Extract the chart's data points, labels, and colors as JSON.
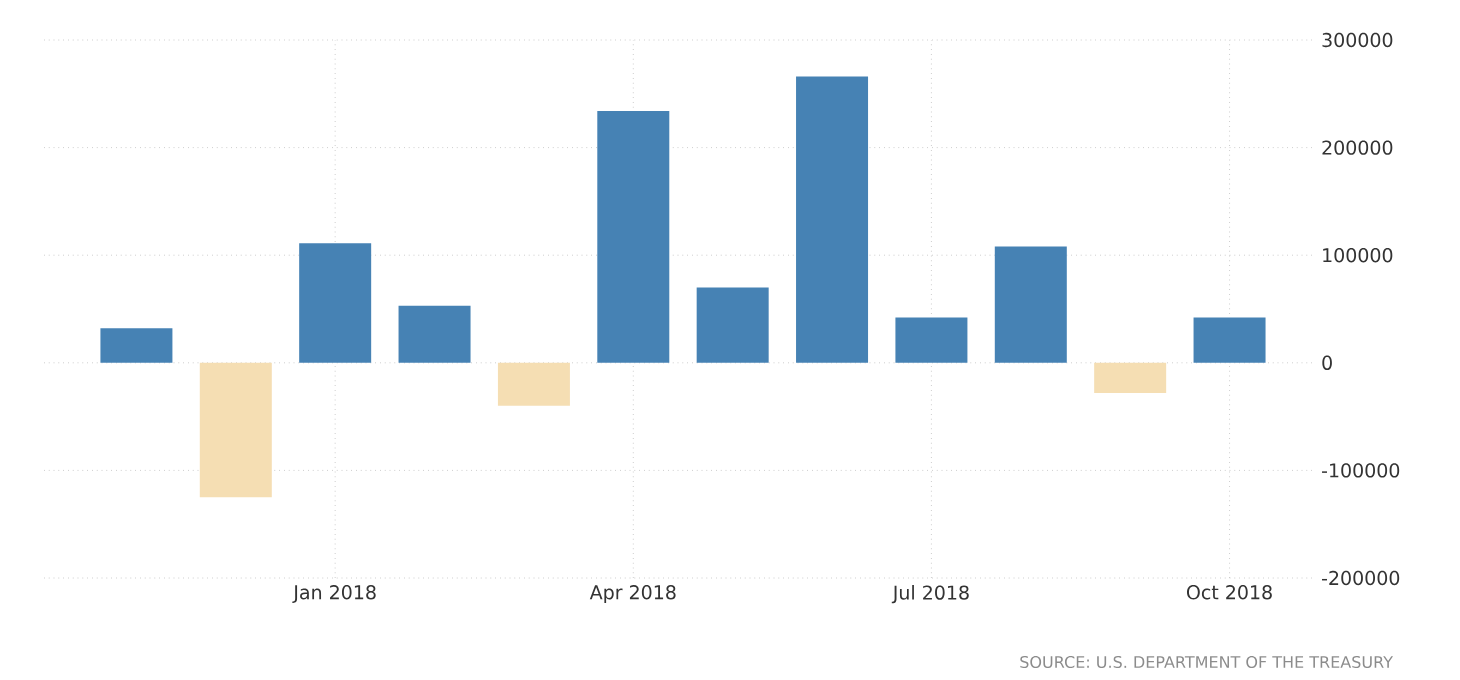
{
  "chart_data": {
    "type": "bar",
    "categories": [
      null,
      null,
      "Jan 2018",
      null,
      null,
      "Apr 2018",
      null,
      null,
      "Jul 2018",
      null,
      null,
      "Oct 2018"
    ],
    "values": [
      32000,
      -125000,
      111000,
      53000,
      -40000,
      234000,
      70000,
      266000,
      42000,
      108000,
      -28000,
      42000
    ],
    "colors": [
      "#4682b4",
      "#f5deb3",
      "#4682b4",
      "#4682b4",
      "#f5deb3",
      "#4682b4",
      "#4682b4",
      "#4682b4",
      "#4682b4",
      "#4682b4",
      "#f5deb3",
      "#4682b4"
    ],
    "ylim": [
      -200000,
      300000
    ],
    "yticks": [
      -200000,
      -100000,
      0,
      100000,
      200000,
      300000
    ],
    "grid": true,
    "annotations": [
      "SOURCE: U.S. DEPARTMENT OF THE TREASURY"
    ]
  }
}
